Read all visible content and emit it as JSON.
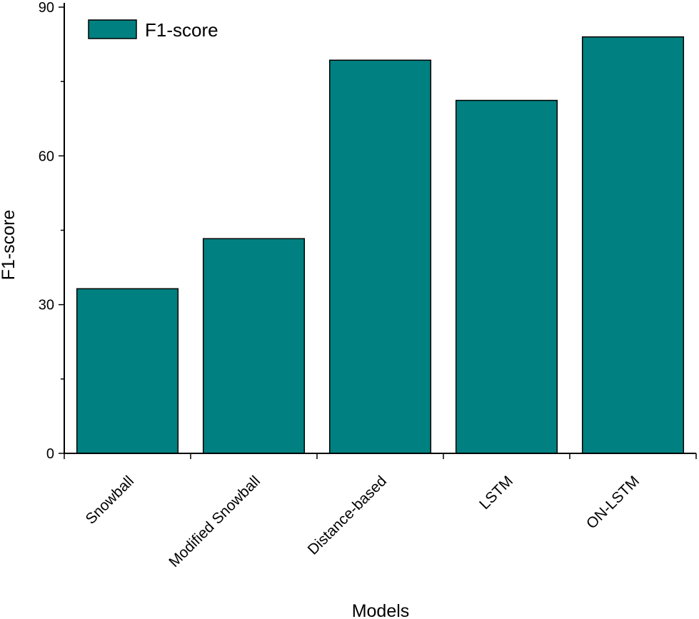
{
  "chart_data": {
    "type": "bar",
    "categories": [
      "Snowball",
      "Modified Snowball",
      "Distance-based",
      "LSTM",
      "ON-LSTM"
    ],
    "series": [
      {
        "name": "F1-score",
        "values": [
          33.2,
          43.3,
          79.3,
          71.2,
          84.0
        ]
      }
    ],
    "xlabel": "Models",
    "ylabel": "F1-score",
    "ylim": [
      0,
      90
    ],
    "yticks": [
      0,
      30,
      60,
      90
    ],
    "legend": "top-left",
    "grid": false,
    "colors": {
      "bar": "#008080",
      "bar_edge": "#000000",
      "axis": "#000000"
    }
  }
}
